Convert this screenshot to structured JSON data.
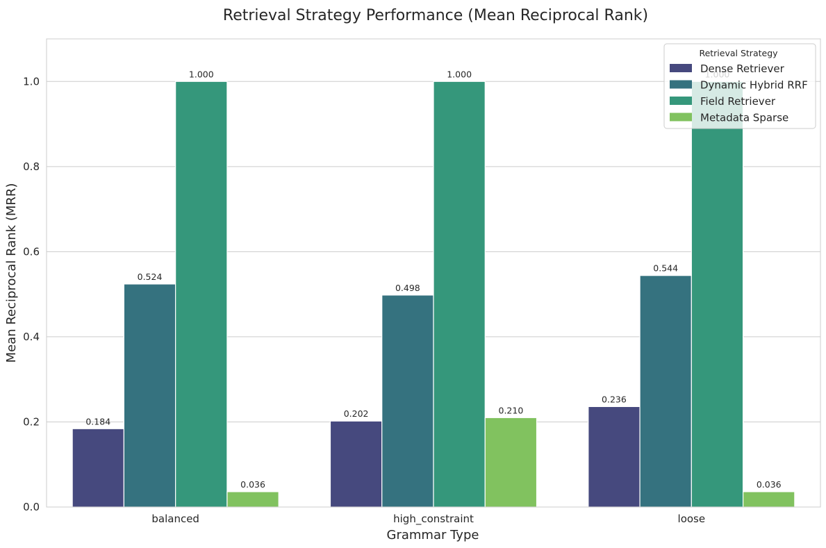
{
  "chart_data": {
    "type": "bar",
    "title": "Retrieval Strategy Performance (Mean Reciprocal Rank)",
    "xlabel": "Grammar Type",
    "ylabel": "Mean Reciprocal Rank (MRR)",
    "categories": [
      "balanced",
      "high_constraint",
      "loose"
    ],
    "ylim": [
      0,
      1.1
    ],
    "yticks": [
      "0.0",
      "0.2",
      "0.4",
      "0.6",
      "0.8",
      "1.0"
    ],
    "grid": "horizontal",
    "legend": {
      "title": "Retrieval Strategy",
      "placement": "top-right"
    },
    "series": [
      {
        "name": "Dense Retriever",
        "color": "#46497e",
        "values": [
          0.184,
          0.202,
          0.236
        ],
        "labels": [
          "0.184",
          "0.202",
          "0.236"
        ]
      },
      {
        "name": "Dynamic Hybrid RRF",
        "color": "#35727f",
        "values": [
          0.524,
          0.498,
          0.544
        ],
        "labels": [
          "0.524",
          "0.498",
          "0.544"
        ]
      },
      {
        "name": "Field Retriever",
        "color": "#35977b",
        "values": [
          1.0,
          1.0,
          1.0
        ],
        "labels": [
          "1.000",
          "1.000",
          "1.000"
        ]
      },
      {
        "name": "Metadata Sparse",
        "color": "#81c25f",
        "values": [
          0.036,
          0.21,
          0.036
        ],
        "labels": [
          "0.036",
          "0.210",
          "0.036"
        ]
      }
    ]
  }
}
